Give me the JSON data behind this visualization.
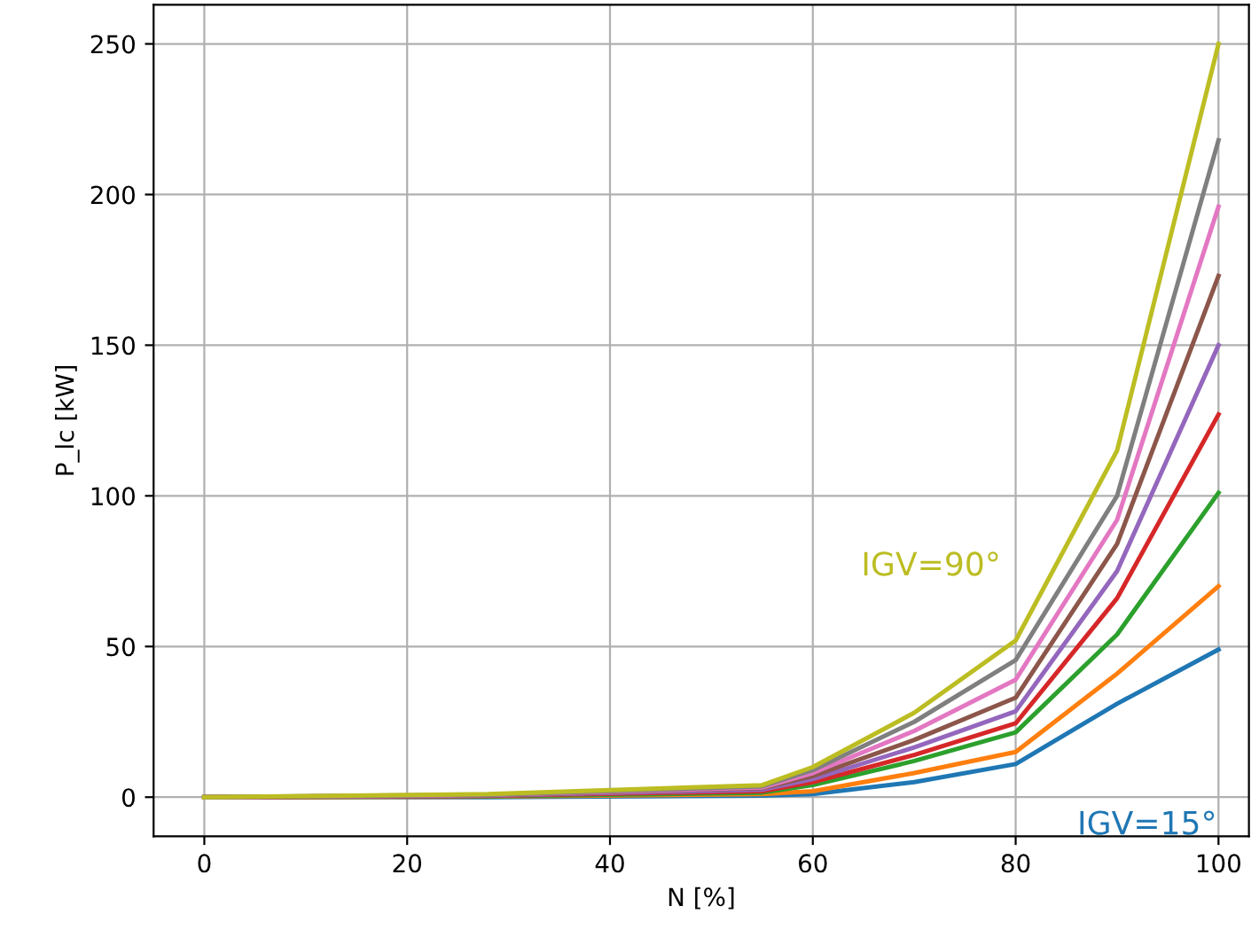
{
  "chart_data": {
    "type": "line",
    "xlabel": "N [%]",
    "ylabel": "P_lc [kW]",
    "x": [
      0,
      28,
      55,
      60,
      70,
      80,
      90,
      100
    ],
    "xlim": [
      -5,
      103
    ],
    "xticks": [
      0,
      20,
      40,
      60,
      80,
      100
    ],
    "ylim": [
      -13,
      263
    ],
    "yticks": [
      0,
      50,
      100,
      150,
      200,
      250
    ],
    "grid": true,
    "legend": false,
    "marker": "none",
    "line_style": "solid",
    "series": [
      {
        "name": "IGV=15°",
        "color": "#1f77b4",
        "values": [
          0,
          0,
          0.5,
          1,
          5,
          11,
          31,
          49
        ]
      },
      {
        "color": "#ff7f0e",
        "values": [
          0,
          0.2,
          1,
          2,
          8,
          15,
          41,
          70
        ]
      },
      {
        "color": "#2ca02c",
        "values": [
          0,
          0.3,
          1.5,
          4,
          12,
          21.5,
          54,
          101
        ]
      },
      {
        "color": "#d62728",
        "values": [
          0,
          0.4,
          2,
          5,
          14,
          24.5,
          66,
          127
        ]
      },
      {
        "color": "#9467bd",
        "values": [
          0,
          0.5,
          2.5,
          6,
          16.5,
          28.5,
          75,
          150
        ]
      },
      {
        "color": "#8c564b",
        "values": [
          0,
          0.6,
          3,
          7,
          19,
          33,
          84,
          173
        ]
      },
      {
        "color": "#e377c2",
        "values": [
          0,
          0.7,
          3.2,
          8,
          22,
          39,
          92,
          196
        ]
      },
      {
        "color": "#7f7f7f",
        "values": [
          0,
          0.8,
          3.6,
          9,
          25,
          45.5,
          100,
          218
        ]
      },
      {
        "name": "IGV=90°",
        "color": "#bcbd22",
        "values": [
          0,
          1,
          4,
          10,
          28,
          52,
          115,
          250
        ]
      }
    ]
  }
}
